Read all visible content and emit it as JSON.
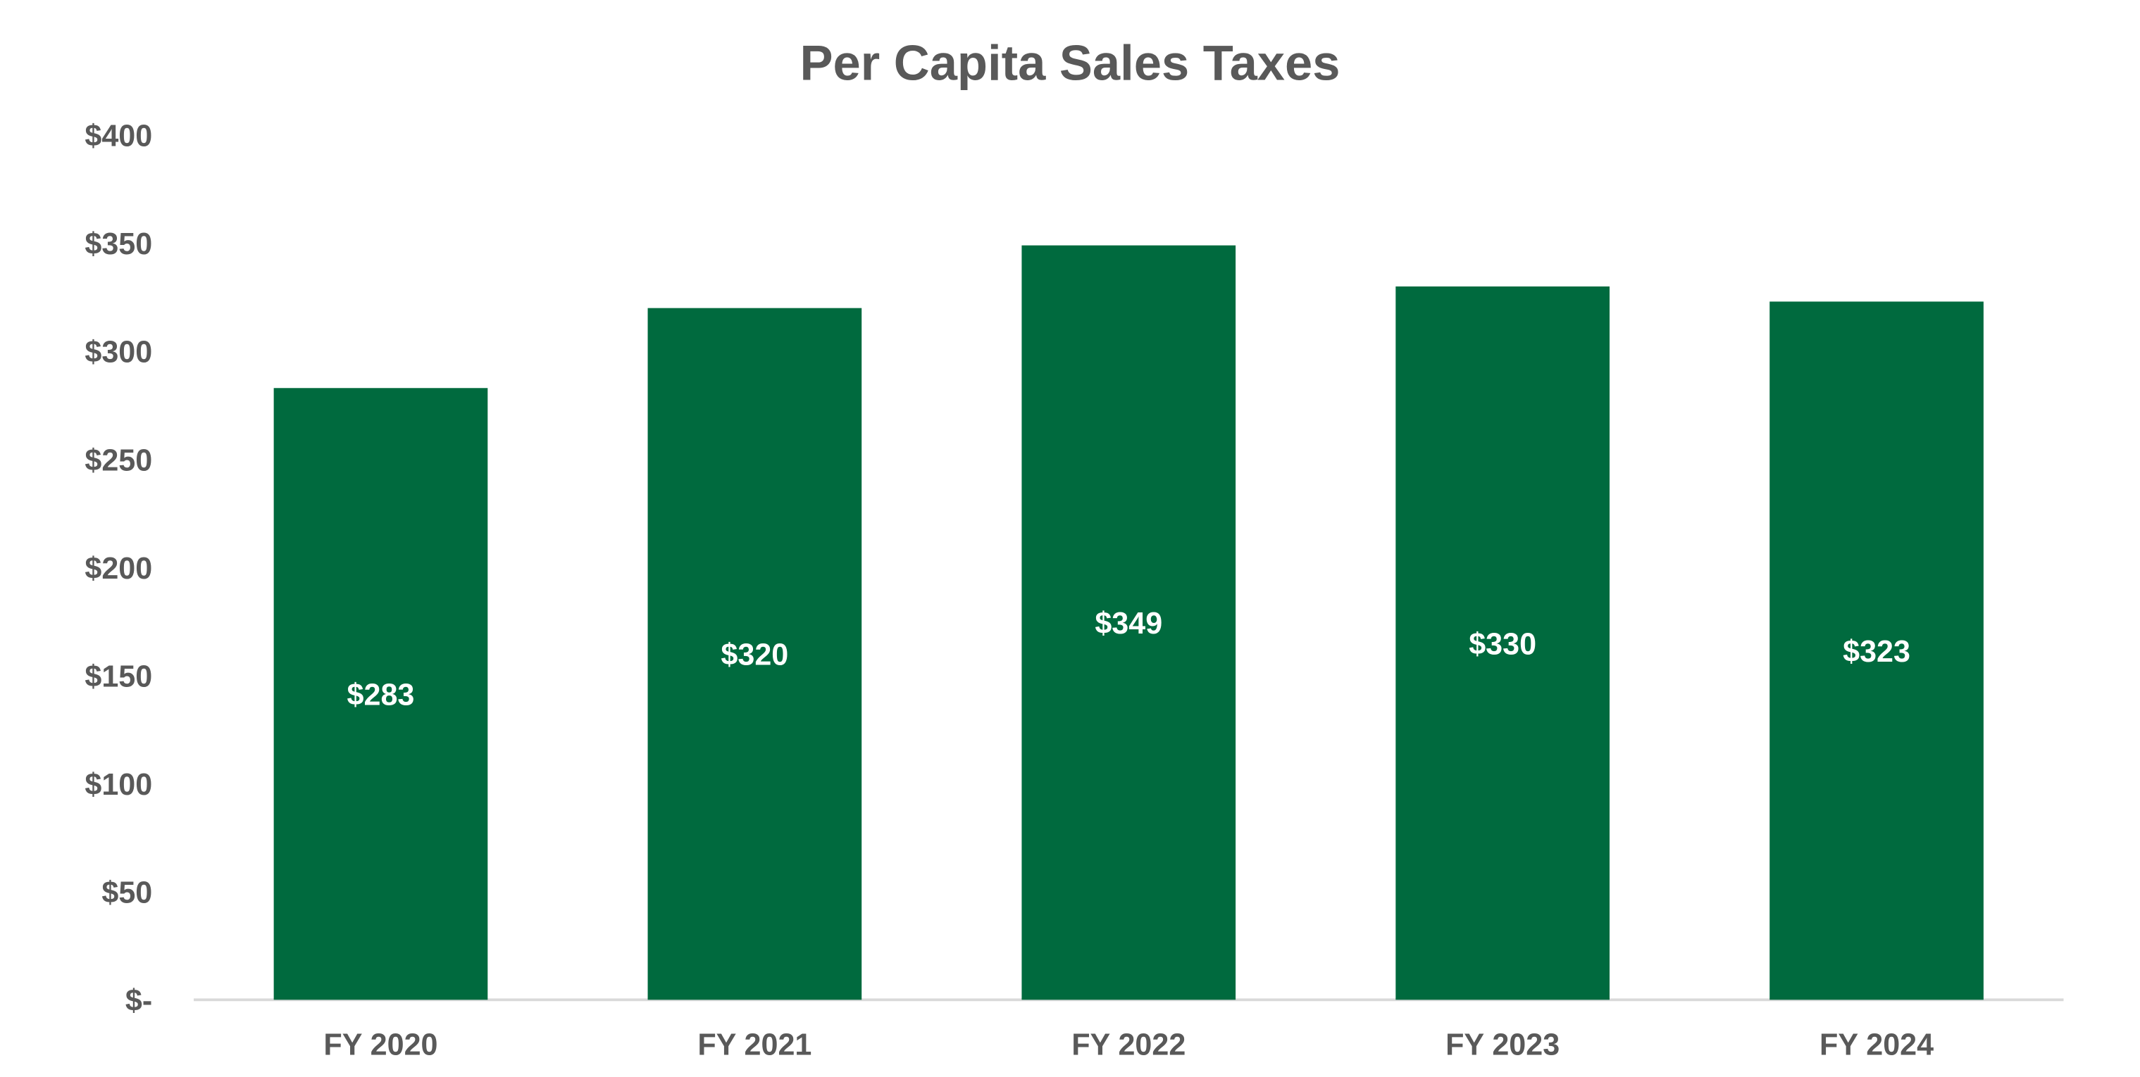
{
  "chart_data": {
    "type": "bar",
    "title": "Per Capita Sales Taxes",
    "xlabel": "",
    "ylabel": "",
    "categories": [
      "FY 2020",
      "FY 2021",
      "FY 2022",
      "FY 2023",
      "FY 2024"
    ],
    "values": [
      283,
      320,
      349,
      330,
      323
    ],
    "data_labels": [
      "$283",
      "$320",
      "$349",
      "$330",
      "$323"
    ],
    "ylim": [
      0,
      400
    ],
    "yticks": [
      0,
      50,
      100,
      150,
      200,
      250,
      300,
      350,
      400
    ],
    "ytick_labels": [
      "$-",
      "$50",
      "$100",
      "$150",
      "$200",
      "$250",
      "$300",
      "$350",
      "$400"
    ],
    "grid": false,
    "legend": "none",
    "colors": {
      "bar": "#006A3E",
      "text": "#595959",
      "axis": "#D9D9D9",
      "data_label": "#FFFFFF"
    }
  }
}
